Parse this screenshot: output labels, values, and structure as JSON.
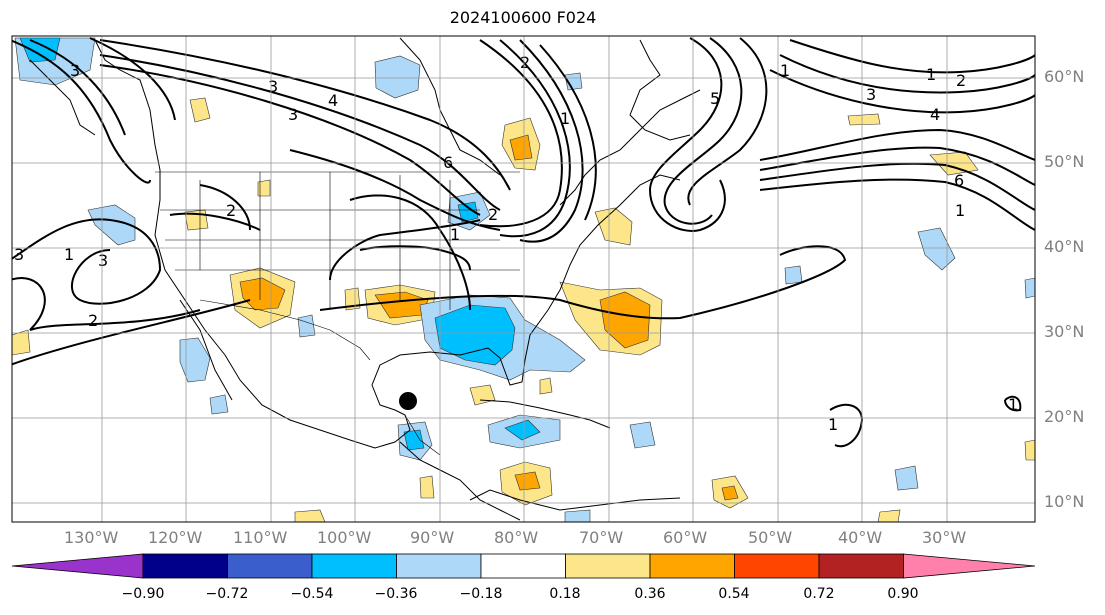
{
  "title": "2024100600 F024",
  "lat_labels": [
    "60°N",
    "50°N",
    "40°N",
    "30°N",
    "20°N",
    "10°N"
  ],
  "lon_labels": [
    "130°W",
    "120°W",
    "110°W",
    "100°W",
    "90°W",
    "80°W",
    "70°W",
    "60°W",
    "50°W",
    "40°W",
    "30°W"
  ],
  "contour_labels": [
    "3",
    "3",
    "3",
    "4",
    "6",
    "1",
    "2",
    "1",
    "1",
    "2",
    "3",
    "4",
    "5",
    "6",
    "1",
    "2",
    "3",
    "1",
    "1",
    "2",
    "3",
    "2",
    "1",
    "1"
  ],
  "colorbar": {
    "labels": [
      "−0.90",
      "−0.72",
      "−0.54",
      "−0.36",
      "−0.18",
      "0.18",
      "0.36",
      "0.54",
      "0.72",
      "0.90"
    ],
    "colors": [
      "#9933cc",
      "#00008b",
      "#3a5fcd",
      "#00bfff",
      "#add8f7",
      "#ffffff",
      "#fde68a",
      "#ffa500",
      "#ff4500",
      "#b22222",
      "#ff80ab"
    ]
  },
  "colors": {
    "light_blue": "#add8f7",
    "blue": "#00bfff",
    "light_yellow": "#fde68a",
    "orange": "#ffa500"
  }
}
